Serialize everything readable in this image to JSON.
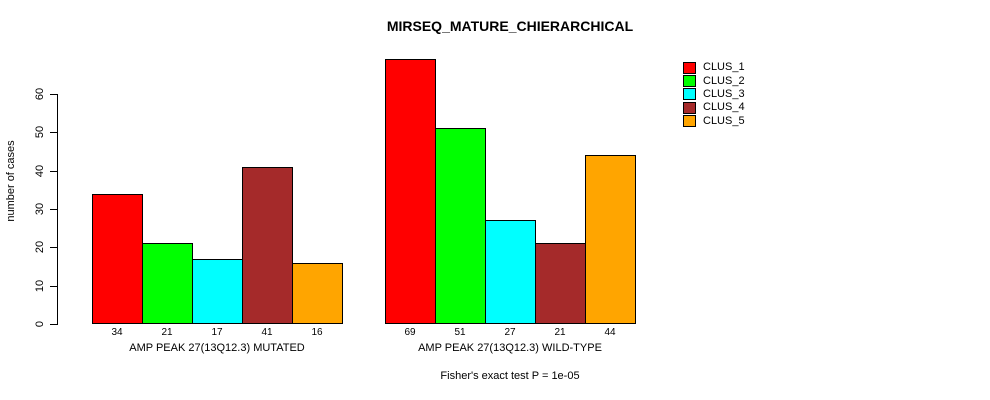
{
  "chart_data": {
    "type": "bar",
    "title": "MIRSEQ_MATURE_CHIERARCHICAL",
    "ylabel": "number of cases",
    "yticks": [
      0,
      10,
      20,
      30,
      40,
      50,
      60
    ],
    "ylim": [
      0,
      60
    ],
    "grid": false,
    "legend_position": "top-right",
    "clusters": [
      {
        "name": "CLUS_1",
        "color": "#FF0000"
      },
      {
        "name": "CLUS_2",
        "color": "#00FF00"
      },
      {
        "name": "CLUS_3",
        "color": "#00FFFF"
      },
      {
        "name": "CLUS_4",
        "color": "#A52A2A"
      },
      {
        "name": "CLUS_5",
        "color": "#FFA500"
      }
    ],
    "groups": [
      {
        "label": "AMP PEAK 27(13Q12.3) MUTATED",
        "values": [
          34,
          21,
          17,
          41,
          16
        ]
      },
      {
        "label": "AMP PEAK 27(13Q12.3) WILD-TYPE",
        "values": [
          69,
          51,
          27,
          21,
          44
        ]
      }
    ],
    "caption": "Fisher's exact test P = 1e-05"
  }
}
